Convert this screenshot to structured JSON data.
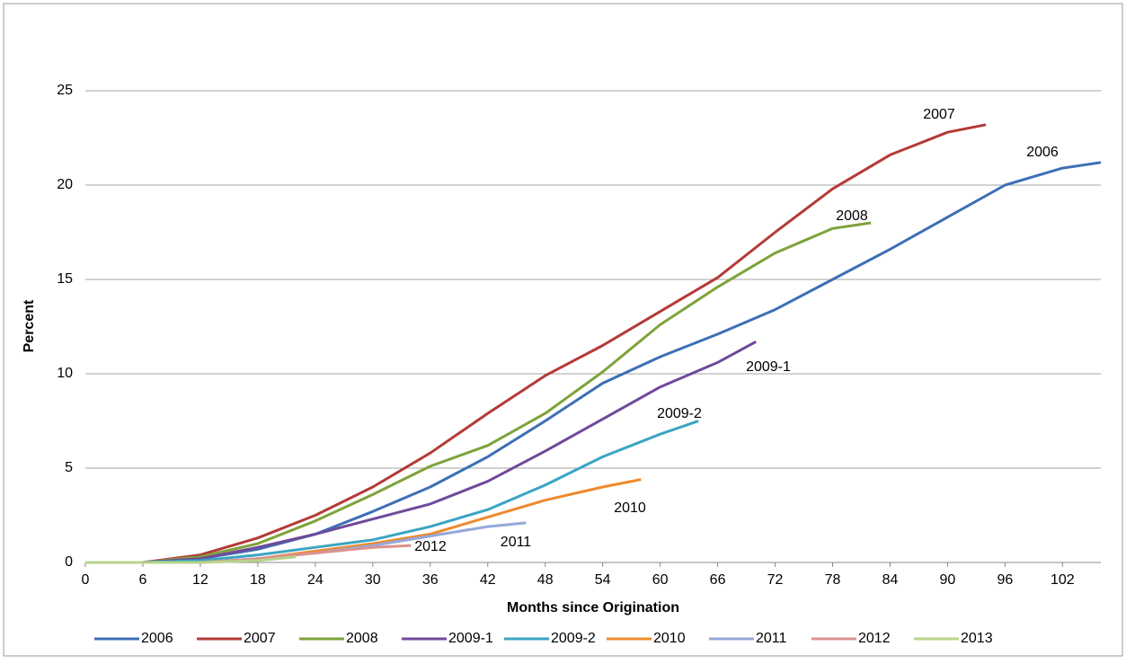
{
  "chart_data": {
    "type": "line",
    "x_label": "Months since Origination",
    "y_label": "Percent",
    "xlim": [
      0,
      106
    ],
    "ylim": [
      0,
      25
    ],
    "xticks": [
      0,
      6,
      12,
      18,
      24,
      30,
      36,
      42,
      48,
      54,
      60,
      66,
      72,
      78,
      84,
      90,
      96,
      102
    ],
    "yticks": [
      0,
      5,
      10,
      15,
      20,
      25
    ],
    "grid": true,
    "legend": "bottom",
    "series": [
      {
        "name": "2006",
        "color": "#3d6fb5",
        "x": [
          0,
          6,
          12,
          18,
          24,
          30,
          36,
          42,
          48,
          54,
          60,
          66,
          72,
          78,
          84,
          90,
          96,
          102,
          106
        ],
        "values": [
          0,
          0,
          0.2,
          0.7,
          1.5,
          2.7,
          4.0,
          5.6,
          7.5,
          9.5,
          10.9,
          12.1,
          13.4,
          15.0,
          16.6,
          18.3,
          20.0,
          20.9,
          21.2
        ]
      },
      {
        "name": "2007",
        "color": "#b43a36",
        "x": [
          0,
          6,
          12,
          18,
          24,
          30,
          36,
          42,
          48,
          54,
          60,
          66,
          72,
          78,
          84,
          90,
          94
        ],
        "values": [
          0,
          0,
          0.4,
          1.3,
          2.5,
          4.0,
          5.8,
          7.9,
          9.9,
          11.5,
          13.3,
          15.1,
          17.5,
          19.8,
          21.6,
          22.8,
          23.2
        ]
      },
      {
        "name": "2008",
        "color": "#7ea33a",
        "x": [
          0,
          6,
          12,
          18,
          24,
          30,
          36,
          42,
          48,
          54,
          60,
          66,
          72,
          78,
          82
        ],
        "values": [
          0,
          0,
          0.3,
          1.0,
          2.2,
          3.6,
          5.1,
          6.2,
          7.9,
          10.1,
          12.6,
          14.6,
          16.4,
          17.7,
          18.0
        ]
      },
      {
        "name": "2009-1",
        "color": "#6f4a9b",
        "x": [
          0,
          6,
          12,
          18,
          24,
          30,
          36,
          42,
          48,
          54,
          60,
          66,
          70
        ],
        "values": [
          0,
          0,
          0.2,
          0.8,
          1.5,
          2.3,
          3.1,
          4.3,
          5.9,
          7.6,
          9.3,
          10.6,
          11.7
        ]
      },
      {
        "name": "2009-2",
        "color": "#3aa5c2",
        "x": [
          0,
          6,
          12,
          18,
          24,
          30,
          36,
          42,
          48,
          54,
          60,
          64
        ],
        "values": [
          0,
          0,
          0.1,
          0.4,
          0.8,
          1.2,
          1.9,
          2.8,
          4.1,
          5.6,
          6.8,
          7.5
        ]
      },
      {
        "name": "2010",
        "color": "#ee8a2e",
        "x": [
          0,
          6,
          12,
          18,
          24,
          30,
          36,
          42,
          48,
          54,
          58
        ],
        "values": [
          0,
          0,
          0,
          0.2,
          0.6,
          1.0,
          1.5,
          2.4,
          3.3,
          4.0,
          4.4
        ]
      },
      {
        "name": "2011",
        "color": "#93a9d9",
        "x": [
          0,
          6,
          12,
          18,
          24,
          30,
          36,
          42,
          46
        ],
        "values": [
          0,
          0,
          0,
          0.2,
          0.5,
          0.9,
          1.4,
          1.9,
          2.1
        ]
      },
      {
        "name": "2012",
        "color": "#dc9190",
        "x": [
          0,
          6,
          12,
          18,
          24,
          30,
          34
        ],
        "values": [
          0,
          0,
          0,
          0.2,
          0.5,
          0.8,
          0.9
        ]
      },
      {
        "name": "2013",
        "color": "#b7d48a",
        "x": [
          0,
          6,
          12,
          18,
          22
        ],
        "values": [
          0,
          0,
          0,
          0.1,
          0.3
        ]
      }
    ]
  }
}
